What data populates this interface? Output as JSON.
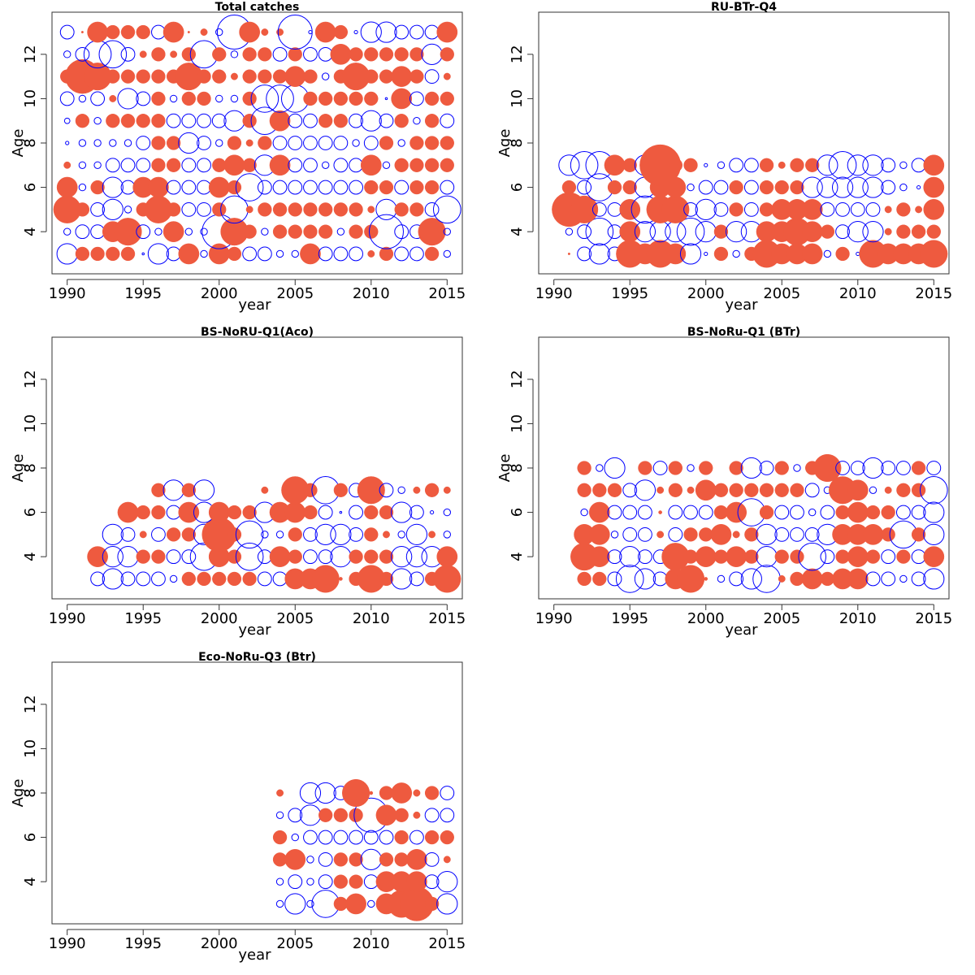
{
  "chart_data": [
    {
      "type": "scatter",
      "title": "Total catches",
      "xlabel": "year",
      "ylabel": "Age",
      "xlim": [
        1989,
        2016
      ],
      "ylim": [
        2.1,
        13.9
      ],
      "xticks": [
        "1990",
        "1995",
        "2000",
        "2005",
        "2010",
        "2015"
      ],
      "yticks": [
        "4",
        "6",
        "8",
        "10",
        "12"
      ],
      "ages": [
        3,
        4,
        5,
        6,
        7,
        8,
        9,
        10,
        11,
        12,
        13
      ],
      "years": [
        1990,
        1991,
        1992,
        1993,
        1994,
        1995,
        1996,
        1997,
        1998,
        1999,
        2000,
        2001,
        2002,
        2003,
        2004,
        2005,
        2006,
        2007,
        2008,
        2009,
        2010,
        2011,
        2012,
        2013,
        2014,
        2015
      ],
      "values": [
        [
          -3,
          2,
          2,
          2,
          2,
          -0.3,
          -3,
          -2,
          3,
          -1,
          3,
          2,
          -2,
          -2,
          -1,
          -1,
          3,
          -2,
          -2,
          -2,
          1,
          2,
          -2,
          -2,
          2,
          -1
        ],
        [
          -1,
          -2,
          -2,
          3,
          4,
          -2,
          -1,
          3,
          -1,
          -1,
          -5,
          4,
          2,
          -1,
          2,
          2,
          2,
          2,
          -1,
          2,
          2,
          -5,
          -2,
          -2,
          4,
          -1
        ],
        [
          4,
          2,
          -2,
          -3,
          -1,
          2,
          4,
          2,
          -2,
          -2,
          2,
          -4,
          1,
          2,
          2,
          2,
          2,
          2,
          2,
          2,
          1,
          -3,
          2,
          2,
          -2,
          -4
        ],
        [
          3,
          -1,
          2,
          -3,
          -2,
          3,
          3,
          -2,
          -2,
          -2,
          3,
          2,
          -4,
          -2,
          -2,
          -2,
          -2,
          -2,
          -2,
          -2,
          2,
          2,
          -2,
          2,
          2,
          -2
        ],
        [
          1,
          -1,
          -1,
          -2,
          -2,
          -2,
          2,
          2,
          -2,
          -2,
          2,
          3,
          2,
          -3,
          3,
          -2,
          -2,
          -1,
          -2,
          -2,
          3,
          -1,
          2,
          2,
          2,
          2
        ],
        [
          -0.5,
          -1,
          -1,
          -1,
          -1,
          -2,
          2,
          2,
          -3,
          -2,
          -1,
          2,
          1,
          2,
          -2,
          -2,
          -2,
          -2,
          -2,
          -1,
          -2,
          2,
          -1,
          2,
          2,
          2
        ],
        [
          -0.8,
          2,
          -1,
          2,
          2,
          2,
          2,
          -2,
          -2,
          -2,
          -2,
          -3,
          2,
          -4,
          3,
          -2,
          -2,
          2,
          2,
          -2,
          -3,
          -2,
          2,
          -1,
          2,
          -2
        ],
        [
          -2,
          -1,
          -2,
          1,
          -3,
          -2,
          2,
          -1,
          2,
          2,
          -1,
          -1,
          2,
          -4,
          -4,
          -4,
          2,
          2,
          2,
          2,
          2,
          -0.3,
          3,
          -2,
          2,
          2
        ],
        [
          2,
          5,
          4,
          2,
          2,
          2,
          2,
          2,
          4,
          2,
          2,
          1,
          2,
          2,
          2,
          3,
          2,
          -1,
          2,
          4,
          2,
          2,
          3,
          2,
          -2,
          1
        ],
        [
          -1,
          -2,
          -4,
          -4,
          -2,
          1,
          2,
          1,
          2,
          -4,
          2,
          -1,
          2,
          2,
          -2,
          2,
          -2,
          -2,
          3,
          2,
          2,
          2,
          2,
          2,
          -3,
          2
        ],
        [
          -2,
          0.3,
          3,
          2,
          2,
          2,
          -2,
          3,
          0.3,
          1,
          -1,
          -5,
          3,
          1,
          1,
          -5,
          -0.5,
          3,
          2,
          -0.5,
          -3,
          -3,
          -2,
          -2,
          -2,
          3
        ]
      ]
    },
    {
      "type": "scatter",
      "title": "RU-BTr-Q4",
      "xlabel": "year",
      "ylabel": "Age",
      "xlim": [
        1989,
        2016
      ],
      "ylim": [
        2.1,
        13.9
      ],
      "xticks": [
        "1990",
        "1995",
        "2000",
        "2005",
        "2010",
        "2015"
      ],
      "yticks": [
        "4",
        "6",
        "8",
        "10",
        "12"
      ],
      "ages": [
        3,
        4,
        5,
        6,
        7
      ],
      "years": [
        1991,
        1992,
        1993,
        1994,
        1995,
        1996,
        1997,
        1998,
        1999,
        2000,
        2001,
        2002,
        2003,
        2004,
        2005,
        2006,
        2007,
        2008,
        2009,
        2010,
        2011,
        2012,
        2013,
        2014,
        2015
      ],
      "values": [
        [
          0.3,
          -2,
          -3,
          -2,
          4,
          3,
          4,
          3,
          -3,
          -0.5,
          2,
          -1,
          2,
          4,
          3,
          3,
          3,
          -1,
          2,
          -0.5,
          4,
          3,
          3,
          3,
          4
        ],
        [
          -1,
          -2,
          -4,
          -2,
          3,
          -3,
          -3,
          -3,
          -4,
          -3,
          2,
          -3,
          -3,
          3,
          3,
          4,
          3,
          2,
          -2,
          -3,
          -3,
          1,
          2,
          2,
          2
        ],
        [
          5,
          4,
          -2,
          -2,
          3,
          -4,
          4,
          4,
          -2,
          -3,
          -2,
          2,
          -2,
          2,
          3,
          3,
          3,
          -2,
          -2,
          -2,
          -2,
          1,
          2,
          1,
          3
        ],
        [
          2,
          -2,
          -4,
          2,
          2,
          -3,
          3,
          3,
          -1,
          -2,
          -2,
          2,
          -2,
          2,
          2,
          2,
          -3,
          -3,
          -3,
          -3,
          -3,
          -2,
          -1,
          -0.5,
          3
        ],
        [
          -3,
          -4,
          -4,
          3,
          2,
          -3,
          6,
          2,
          2,
          -0.5,
          -1,
          -2,
          -2,
          2,
          1,
          2,
          2,
          -3,
          -4,
          -3,
          -3,
          -2,
          -1,
          -2,
          3
        ]
      ]
    },
    {
      "type": "scatter",
      "title": "BS-NoRU-Q1(Aco)",
      "xlabel": "year",
      "ylabel": "Age",
      "xlim": [
        1989,
        2016
      ],
      "ylim": [
        2.1,
        13.9
      ],
      "xticks": [
        "1990",
        "1995",
        "2000",
        "2005",
        "2010",
        "2015"
      ],
      "yticks": [
        "4",
        "6",
        "8",
        "10",
        "12"
      ],
      "ages": [
        3,
        4,
        5,
        6,
        7
      ],
      "years": [
        1992,
        1993,
        1994,
        1995,
        1996,
        1997,
        1998,
        1999,
        2000,
        2001,
        2002,
        2003,
        2004,
        2005,
        2006,
        2007,
        2008,
        2009,
        2010,
        2011,
        2012,
        2013,
        2014,
        2015
      ],
      "values": [
        [
          -2,
          -3,
          -2,
          -2,
          -2,
          -1,
          2,
          2,
          2,
          2,
          2,
          -2,
          -2,
          3,
          3,
          4,
          0.5,
          2,
          4,
          2,
          -3,
          -2,
          2,
          4
        ],
        [
          3,
          -3,
          -3,
          2,
          2,
          -2,
          -2,
          -4,
          3,
          2,
          -4,
          -2,
          3,
          2,
          -2,
          -2,
          -3,
          2,
          2,
          2,
          -3,
          -3,
          -3,
          3
        ],
        [
          null,
          -3,
          -2,
          1,
          -2,
          2,
          2,
          -3,
          5,
          2,
          -4,
          -1,
          -1,
          2,
          -2,
          -3,
          -3,
          -2,
          2,
          1,
          -1,
          -3,
          1,
          -1
        ],
        [
          null,
          null,
          3,
          2,
          2,
          -2,
          3,
          -3,
          3,
          2,
          2,
          -3,
          3,
          3,
          2,
          -2,
          -0.3,
          -2,
          2,
          2,
          -3,
          -2,
          -0.5,
          -1
        ],
        [
          null,
          null,
          null,
          null,
          2,
          -3,
          2,
          -3,
          null,
          null,
          null,
          1,
          null,
          4,
          2,
          -4,
          2,
          -2,
          4,
          -2,
          -1,
          1,
          2,
          1
        ]
      ]
    },
    {
      "type": "scatter",
      "title": "BS-NoRu-Q1 (BTr)",
      "xlabel": "year",
      "ylabel": "Age",
      "xlim": [
        1989,
        2016
      ],
      "ylim": [
        2.1,
        13.9
      ],
      "xticks": [
        "1990",
        "1995",
        "2000",
        "2005",
        "2010",
        "2015"
      ],
      "yticks": [
        "4",
        "6",
        "8",
        "10",
        "12"
      ],
      "ages": [
        3,
        4,
        5,
        6,
        7,
        8
      ],
      "years": [
        1992,
        1993,
        1994,
        1995,
        1996,
        1997,
        1998,
        1999,
        2000,
        2001,
        2002,
        2003,
        2004,
        2005,
        2006,
        2007,
        2008,
        2009,
        2010,
        2011,
        2012,
        2013,
        2014,
        2015
      ],
      "values": [
        [
          2,
          2,
          -2,
          -4,
          -3,
          -2,
          3,
          4,
          0.5,
          -1,
          -2,
          -3,
          -4,
          1,
          2,
          3,
          2,
          3,
          3,
          -2,
          -2,
          -1,
          -2,
          -3
        ],
        [
          4,
          3,
          -2,
          -3,
          -2,
          -2,
          4,
          2,
          3,
          2,
          3,
          2,
          -3,
          2,
          2,
          -4,
          -2,
          2,
          3,
          2,
          -2,
          2,
          -2,
          3
        ],
        [
          3,
          3,
          -1,
          -2,
          -2,
          1,
          -2,
          2,
          2,
          3,
          1,
          2,
          -3,
          -2,
          -2,
          -2,
          -3,
          3,
          3,
          3,
          2,
          -4,
          2,
          -3
        ],
        [
          -1,
          3,
          -2,
          -2,
          -2,
          0.5,
          -2,
          -2,
          -2,
          2,
          3,
          -4,
          2,
          -2,
          -2,
          -1,
          -2,
          2,
          3,
          2,
          2,
          -2,
          -2,
          -3
        ],
        [
          2,
          2,
          2,
          -2,
          -3,
          1,
          2,
          1,
          3,
          2,
          2,
          2,
          2,
          2,
          2,
          -2,
          -1,
          4,
          3,
          -1,
          1,
          2,
          2,
          -4
        ],
        [
          2,
          -1,
          -3,
          null,
          2,
          -2,
          2,
          -1,
          2,
          null,
          2,
          -3,
          -2,
          2,
          -1,
          2,
          4,
          -2,
          -2,
          -3,
          -2,
          -2,
          2,
          -2
        ]
      ]
    },
    {
      "type": "scatter",
      "title": "Eco-NoRu-Q3 (Btr)",
      "xlabel": "year",
      "ylabel": "Age",
      "xlim": [
        1989,
        2016
      ],
      "ylim": [
        2.1,
        13.9
      ],
      "xticks": [
        "1990",
        "1995",
        "2000",
        "2005",
        "2010",
        "2015"
      ],
      "yticks": [
        "4",
        "6",
        "8",
        "10",
        "12"
      ],
      "ages": [
        3,
        4,
        5,
        6,
        7,
        8
      ],
      "years": [
        2004,
        2005,
        2006,
        2007,
        2008,
        2009,
        2010,
        2011,
        2012,
        2013,
        2014,
        2015
      ],
      "values": [
        [
          -1,
          -3,
          -1,
          -4,
          2,
          3,
          -1,
          3,
          4,
          5,
          2,
          -3
        ],
        [
          -1,
          -2,
          -1,
          -2,
          2,
          2,
          -2,
          3,
          3,
          3,
          -2,
          -3
        ],
        [
          2,
          3,
          -1,
          -2,
          2,
          2,
          -3,
          2,
          2,
          3,
          -2,
          1
        ],
        [
          2,
          -1,
          -2,
          -2,
          -2,
          -2,
          -2,
          -2,
          2,
          -2,
          2,
          2
        ],
        [
          -1,
          -2,
          -3,
          2,
          2,
          2,
          -5,
          3,
          2,
          1,
          -2,
          -2
        ],
        [
          1,
          null,
          -3,
          -3,
          -2,
          4,
          0.5,
          2,
          3,
          1,
          2,
          -2
        ]
      ]
    }
  ]
}
